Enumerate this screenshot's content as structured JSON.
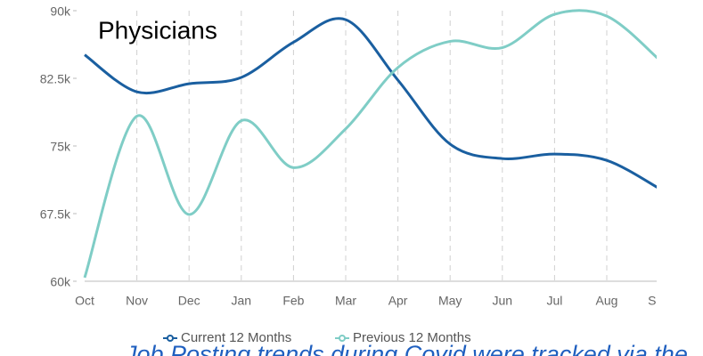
{
  "chart_data": {
    "type": "line",
    "title": "Physicians",
    "caption": "Job Posting trends during Covid were tracked via the",
    "categories": [
      "Oct",
      "Nov",
      "Dec",
      "Jan",
      "Feb",
      "Mar",
      "Apr",
      "May",
      "Jun",
      "Jul",
      "Aug",
      "Sep"
    ],
    "series": [
      {
        "name": "Current 12 Months",
        "color": "#1a5fa0",
        "values": [
          85100,
          81000,
          81900,
          82600,
          86500,
          89000,
          82300,
          75200,
          73600,
          74100,
          73400,
          70300
        ]
      },
      {
        "name": "Previous 12 Months",
        "color": "#7fcdc6",
        "values": [
          60400,
          78300,
          67400,
          77800,
          72600,
          76900,
          83700,
          86600,
          85900,
          89600,
          89400,
          84600
        ]
      }
    ],
    "ylim": [
      60000,
      90000
    ],
    "yticks": [
      {
        "value": 60000,
        "label": "60k"
      },
      {
        "value": 67500,
        "label": "67.5k"
      },
      {
        "value": 75000,
        "label": "75k"
      },
      {
        "value": 82500,
        "label": "82.5k"
      },
      {
        "value": 90000,
        "label": "90k"
      }
    ],
    "grid": true,
    "legend": "bottom"
  }
}
